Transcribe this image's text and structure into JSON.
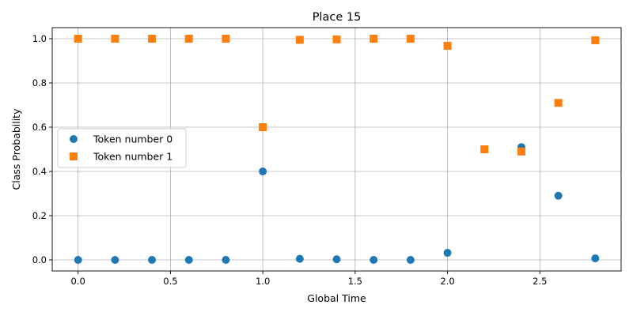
{
  "chart_data": {
    "type": "scatter",
    "title": "Place 15",
    "xlabel": "Global Time",
    "ylabel": "Class Probability",
    "xlim": [
      -0.14,
      2.94
    ],
    "ylim": [
      -0.05,
      1.05
    ],
    "xticks": [
      0.0,
      0.5,
      1.0,
      1.5,
      2.0,
      2.5
    ],
    "xtick_labels": [
      "0.0",
      "0.5",
      "1.0",
      "1.5",
      "2.0",
      "2.5"
    ],
    "yticks": [
      0.0,
      0.2,
      0.4,
      0.6,
      0.8,
      1.0
    ],
    "ytick_labels": [
      "0.0",
      "0.2",
      "0.4",
      "0.6",
      "0.8",
      "1.0"
    ],
    "grid": true,
    "legend_position": "center-left",
    "series": [
      {
        "name": "Token number 0",
        "marker": "circle",
        "color": "#1f77b4",
        "x": [
          0.0,
          0.2,
          0.4,
          0.6,
          0.8,
          1.0,
          1.2,
          1.4,
          1.6,
          1.8,
          2.0,
          2.2,
          2.4,
          2.6,
          2.8
        ],
        "y": [
          0.0,
          0.0,
          0.0,
          0.0,
          0.0,
          0.4,
          0.005,
          0.003,
          0.0,
          0.0,
          0.032,
          0.5,
          0.51,
          0.29,
          0.007
        ]
      },
      {
        "name": "Token number 1",
        "marker": "square",
        "color": "#ff7f0e",
        "x": [
          0.0,
          0.2,
          0.4,
          0.6,
          0.8,
          1.0,
          1.2,
          1.4,
          1.6,
          1.8,
          2.0,
          2.2,
          2.4,
          2.6,
          2.8
        ],
        "y": [
          1.0,
          1.0,
          1.0,
          1.0,
          1.0,
          0.6,
          0.995,
          0.997,
          1.0,
          1.0,
          0.968,
          0.5,
          0.49,
          0.71,
          0.993
        ]
      }
    ]
  }
}
